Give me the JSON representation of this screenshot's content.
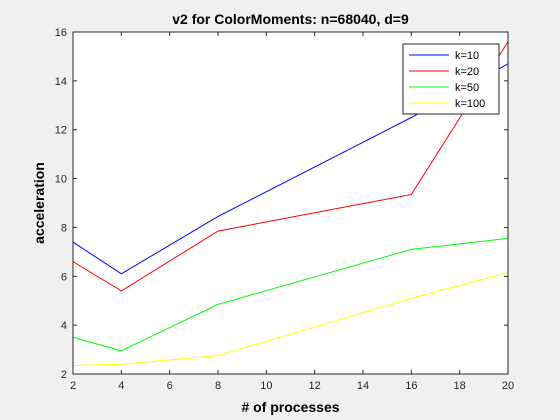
{
  "chart_data": {
    "type": "line",
    "title": "v2 for ColorMoments: n=68040, d=9",
    "xlabel": "# of processes",
    "ylabel": "acceleration",
    "xlim": [
      2,
      20
    ],
    "ylim": [
      2,
      16
    ],
    "xticks": [
      2,
      4,
      6,
      8,
      10,
      12,
      14,
      16,
      18,
      20
    ],
    "yticks": [
      2,
      4,
      6,
      8,
      10,
      12,
      14,
      16
    ],
    "x": [
      2,
      4,
      8,
      16,
      20
    ],
    "grid": false,
    "legend_position": "top-right",
    "series": [
      {
        "name": "k=10",
        "color": "#0000ff",
        "values": [
          7.4,
          6.1,
          8.45,
          12.5,
          14.7
        ]
      },
      {
        "name": "k=20",
        "color": "#ff0000",
        "values": [
          6.6,
          5.4,
          7.85,
          9.35,
          15.6
        ]
      },
      {
        "name": "k=50",
        "color": "#00ff00",
        "values": [
          3.5,
          2.95,
          4.85,
          7.1,
          7.55
        ]
      },
      {
        "name": "k=100",
        "color": "#ffff00",
        "values": [
          2.35,
          2.4,
          2.75,
          5.1,
          6.15
        ]
      }
    ]
  }
}
